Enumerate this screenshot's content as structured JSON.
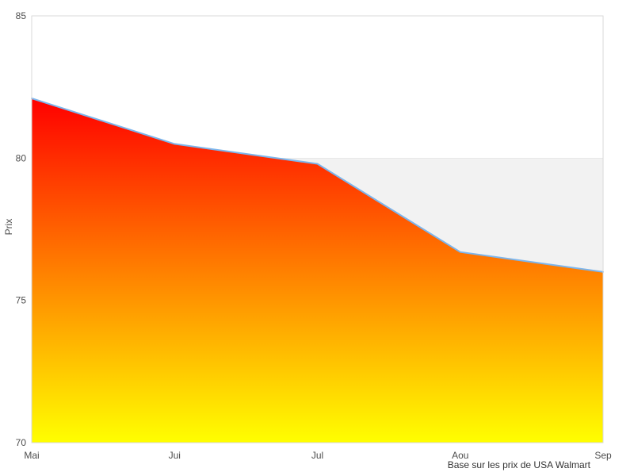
{
  "chart_data": {
    "type": "area",
    "categories": [
      "Mai",
      "Jui",
      "Jul",
      "Aou",
      "Sep"
    ],
    "values": [
      82.1,
      80.5,
      79.8,
      76.7,
      76.0
    ],
    "ylabel": "Prix",
    "xlabel": "",
    "caption": "Base sur les prix de USA Walmart",
    "ylim": [
      70,
      85
    ],
    "yticks": [
      70,
      75,
      80,
      85
    ],
    "grid": false,
    "legend": false,
    "reference_band": {
      "from": 70,
      "to": 80,
      "color": "#f2f2f2",
      "edge_color": "#e8e8e8"
    },
    "series_line_color": "#7cb5ec",
    "area_gradient": {
      "top": "#ff0000",
      "bottom": "#ffff00"
    },
    "plot_border_color": "#d9d9d9",
    "tick_label_color": "#4d4d4d",
    "background": "#ffffff"
  }
}
